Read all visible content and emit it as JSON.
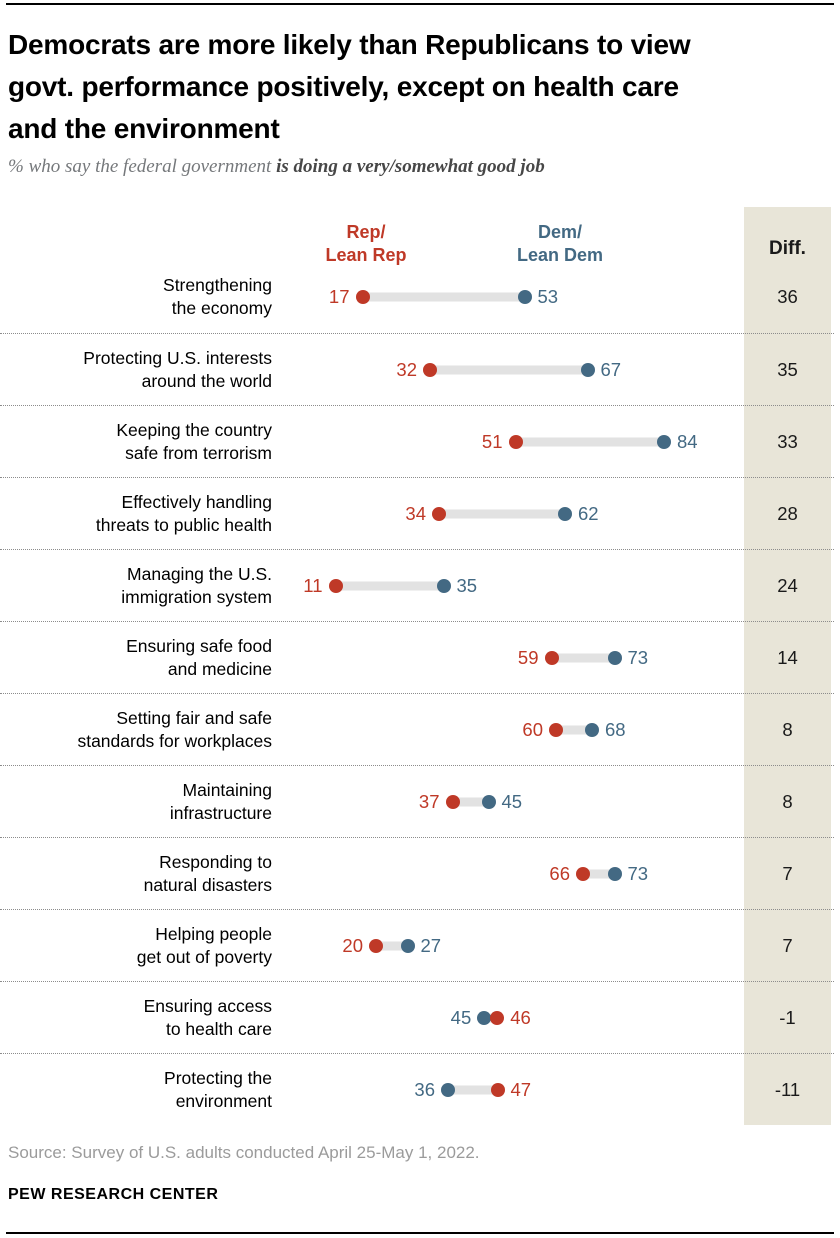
{
  "title": "Democrats are more likely than Republicans to view\ngovt. performance positively, except on health care\nand the environment",
  "subtitle": {
    "prefix": "% who say the federal government ",
    "bold": "is doing a very/somewhat good job"
  },
  "column_headers": {
    "rep": "Rep/\nLean Rep",
    "dem": "Dem/\nLean Dem",
    "diff": "Diff."
  },
  "colors": {
    "rep": "#bf3927",
    "dem": "#436983",
    "connector": "#e2e2e2",
    "diff_column_bg": "#e8e5d8"
  },
  "chart_data": {
    "type": "dumbbell",
    "title": "Democrats are more likely than Republicans to view govt. performance positively, except on health care and the environment",
    "subtitle": "% who say the federal government is doing a very/somewhat good job",
    "xlim": [
      0,
      100
    ],
    "categories": [
      "Strengthening\nthe economy",
      "Protecting U.S. interests\naround the world",
      "Keeping the country\nsafe from terrorism",
      "Effectively handling\nthreats to public health",
      "Managing the U.S.\nimmigration system",
      "Ensuring safe food\nand medicine",
      "Setting fair and safe\nstandards for workplaces",
      "Maintaining\ninfrastructure",
      "Responding to\nnatural disasters",
      "Helping people\nget out of poverty",
      "Ensuring access\nto health care",
      "Protecting the\nenvironment"
    ],
    "series": [
      {
        "name": "Rep/Lean Rep",
        "color": "#bf3927",
        "values": [
          17,
          32,
          51,
          34,
          11,
          59,
          60,
          37,
          66,
          20,
          46,
          47
        ]
      },
      {
        "name": "Dem/Lean Dem",
        "color": "#436983",
        "values": [
          53,
          67,
          84,
          62,
          35,
          73,
          68,
          45,
          73,
          27,
          45,
          36
        ]
      }
    ],
    "diff": [
      36,
      35,
      33,
      28,
      24,
      14,
      8,
      8,
      7,
      7,
      -1,
      -11
    ]
  },
  "source": "Source: Survey of U.S. adults conducted April 25-May 1, 2022.",
  "footer": "PEW RESEARCH CENTER"
}
